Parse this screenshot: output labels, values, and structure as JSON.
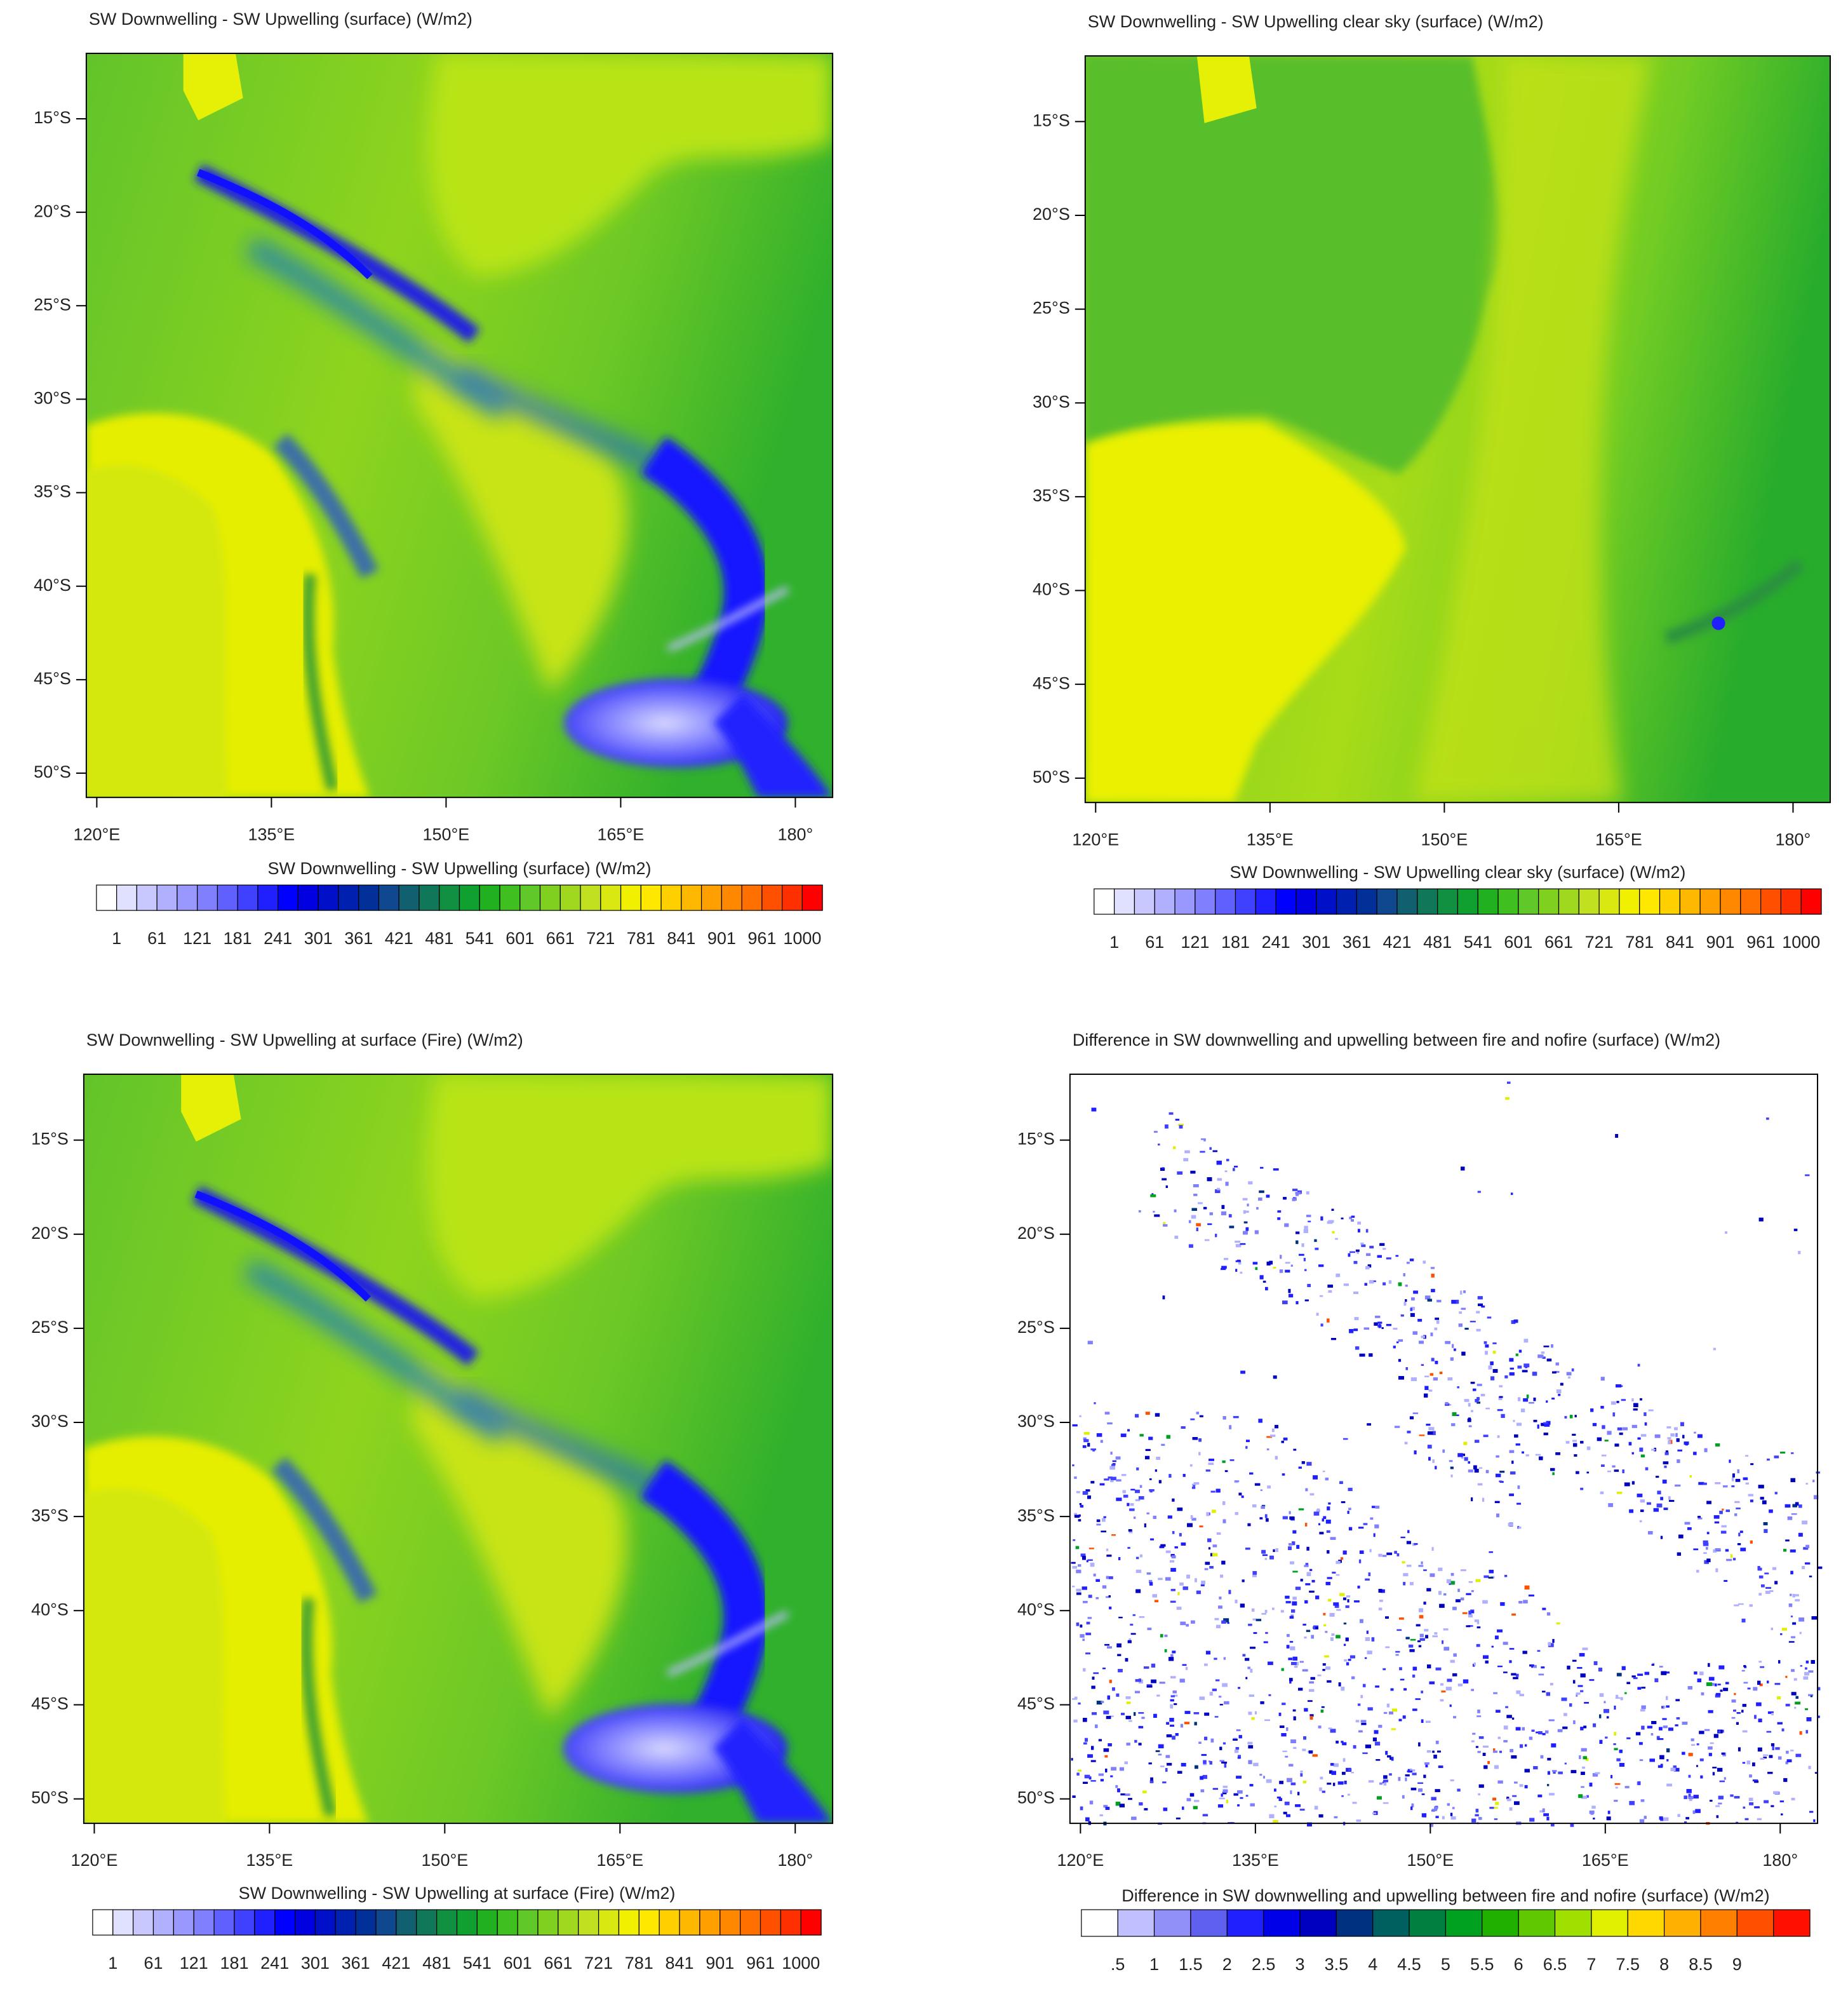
{
  "chart_data": [
    {
      "type": "map",
      "title": "SW Downwelling - SW Upwelling (surface)   (W/m2)",
      "xlim": [
        119.1,
        183.2
      ],
      "ylim": [
        -51.3,
        -11.5
      ],
      "xticks": [
        {
          "value": 120,
          "label": "120°E"
        },
        {
          "value": 135,
          "label": "135°E"
        },
        {
          "value": 150,
          "label": "150°E"
        },
        {
          "value": 165,
          "label": "165°E"
        },
        {
          "value": 180,
          "label": "180°"
        }
      ],
      "yticks": [
        {
          "value": -15,
          "label": "15°S"
        },
        {
          "value": -20,
          "label": "20°S"
        },
        {
          "value": -25,
          "label": "25°S"
        },
        {
          "value": -30,
          "label": "30°S"
        },
        {
          "value": -35,
          "label": "35°S"
        },
        {
          "value": -40,
          "label": "40°S"
        },
        {
          "value": -45,
          "label": "45°S"
        },
        {
          "value": -50,
          "label": "50°S"
        }
      ],
      "colorbar": {
        "title": "SW Downwelling - SW Upwelling (surface)  (W/m2)",
        "labels": [
          1,
          61,
          121,
          181,
          241,
          301,
          361,
          421,
          481,
          541,
          601,
          661,
          721,
          781,
          841,
          901,
          961,
          1000
        ],
        "colors": [
          "#ffffff",
          "#e0e0ff",
          "#c8c8ff",
          "#b0b0ff",
          "#9898ff",
          "#8080ff",
          "#6060ff",
          "#4040ff",
          "#2020ff",
          "#0000ff",
          "#0000e0",
          "#0010c8",
          "#0020b0",
          "#003098",
          "#104890",
          "#106070",
          "#107858",
          "#109040",
          "#10a030",
          "#20b020",
          "#40c020",
          "#60c828",
          "#80d020",
          "#a0d820",
          "#c0e020",
          "#d8e810",
          "#f0f000",
          "#ffe800",
          "#ffd000",
          "#ffb800",
          "#ffa000",
          "#ff8800",
          "#ff7000",
          "#ff5000",
          "#ff3000",
          "#ff0000"
        ]
      }
    },
    {
      "type": "map",
      "title": "SW Downwelling - SW Upwelling clear sky (surface)   (W/m2)",
      "xlim": [
        119.1,
        183.2
      ],
      "ylim": [
        -51.3,
        -11.5
      ],
      "xticks": [
        {
          "value": 120,
          "label": "120°E"
        },
        {
          "value": 135,
          "label": "135°E"
        },
        {
          "value": 150,
          "label": "150°E"
        },
        {
          "value": 165,
          "label": "165°E"
        },
        {
          "value": 180,
          "label": "180°"
        }
      ],
      "yticks": [
        {
          "value": -15,
          "label": "15°S"
        },
        {
          "value": -20,
          "label": "20°S"
        },
        {
          "value": -25,
          "label": "25°S"
        },
        {
          "value": -30,
          "label": "30°S"
        },
        {
          "value": -35,
          "label": "35°S"
        },
        {
          "value": -40,
          "label": "40°S"
        },
        {
          "value": -45,
          "label": "45°S"
        },
        {
          "value": -50,
          "label": "50°S"
        }
      ],
      "colorbar": {
        "title": "SW Downwelling - SW Upwelling clear sky (surface)  (W/m2)",
        "labels": [
          1,
          61,
          121,
          181,
          241,
          301,
          361,
          421,
          481,
          541,
          601,
          661,
          721,
          781,
          841,
          901,
          961,
          1000
        ],
        "colors": [
          "#ffffff",
          "#e0e0ff",
          "#c8c8ff",
          "#b0b0ff",
          "#9898ff",
          "#8080ff",
          "#6060ff",
          "#4040ff",
          "#2020ff",
          "#0000ff",
          "#0000e0",
          "#0010c8",
          "#0020b0",
          "#003098",
          "#104890",
          "#106070",
          "#107858",
          "#109040",
          "#10a030",
          "#20b020",
          "#40c020",
          "#60c828",
          "#80d020",
          "#a0d820",
          "#c0e020",
          "#d8e810",
          "#f0f000",
          "#ffe800",
          "#ffd000",
          "#ffb800",
          "#ffa000",
          "#ff8800",
          "#ff7000",
          "#ff5000",
          "#ff3000",
          "#ff0000"
        ]
      }
    },
    {
      "type": "map",
      "title": "SW Downwelling - SW Upwelling at surface (Fire)   (W/m2)",
      "xlim": [
        119.1,
        183.2
      ],
      "ylim": [
        -51.3,
        -11.5
      ],
      "xticks": [
        {
          "value": 120,
          "label": "120°E"
        },
        {
          "value": 135,
          "label": "135°E"
        },
        {
          "value": 150,
          "label": "150°E"
        },
        {
          "value": 165,
          "label": "165°E"
        },
        {
          "value": 180,
          "label": "180°"
        }
      ],
      "yticks": [
        {
          "value": -15,
          "label": "15°S"
        },
        {
          "value": -20,
          "label": "20°S"
        },
        {
          "value": -25,
          "label": "25°S"
        },
        {
          "value": -30,
          "label": "30°S"
        },
        {
          "value": -35,
          "label": "35°S"
        },
        {
          "value": -40,
          "label": "40°S"
        },
        {
          "value": -45,
          "label": "45°S"
        },
        {
          "value": -50,
          "label": "50°S"
        }
      ],
      "colorbar": {
        "title": "SW Downwelling - SW Upwelling at surface (Fire)  (W/m2)",
        "labels": [
          1,
          61,
          121,
          181,
          241,
          301,
          361,
          421,
          481,
          541,
          601,
          661,
          721,
          781,
          841,
          901,
          961,
          1000
        ],
        "colors": [
          "#ffffff",
          "#e0e0ff",
          "#c8c8ff",
          "#b0b0ff",
          "#9898ff",
          "#8080ff",
          "#6060ff",
          "#4040ff",
          "#2020ff",
          "#0000ff",
          "#0000e0",
          "#0010c8",
          "#0020b0",
          "#003098",
          "#104890",
          "#106070",
          "#107858",
          "#109040",
          "#10a030",
          "#20b020",
          "#40c020",
          "#60c828",
          "#80d020",
          "#a0d820",
          "#c0e020",
          "#d8e810",
          "#f0f000",
          "#ffe800",
          "#ffd000",
          "#ffb800",
          "#ffa000",
          "#ff8800",
          "#ff7000",
          "#ff5000",
          "#ff3000",
          "#ff0000"
        ]
      }
    },
    {
      "type": "map",
      "title": "Difference in SW downwelling and upwelling between fire and nofire (surface)   (W/m2)",
      "xlim": [
        119.1,
        183.2
      ],
      "ylim": [
        -51.3,
        -11.5
      ],
      "xticks": [
        {
          "value": 120,
          "label": "120°E"
        },
        {
          "value": 135,
          "label": "135°E"
        },
        {
          "value": 150,
          "label": "150°E"
        },
        {
          "value": 165,
          "label": "165°E"
        },
        {
          "value": 180,
          "label": "180°"
        }
      ],
      "yticks": [
        {
          "value": -15,
          "label": "15°S"
        },
        {
          "value": -20,
          "label": "20°S"
        },
        {
          "value": -25,
          "label": "25°S"
        },
        {
          "value": -30,
          "label": "30°S"
        },
        {
          "value": -35,
          "label": "35°S"
        },
        {
          "value": -40,
          "label": "40°S"
        },
        {
          "value": -45,
          "label": "45°S"
        },
        {
          "value": -50,
          "label": "50°S"
        }
      ],
      "colorbar": {
        "title": "Difference in SW downwelling and upwelling between fire and nofire (surface)  (W/m2)",
        "labels": [
          {
            "value": 0.5,
            "label": ".5"
          },
          1,
          1.5,
          2,
          2.5,
          3,
          3.5,
          4,
          4.5,
          5,
          5.5,
          6,
          6.5,
          7,
          7.5,
          8,
          8.5,
          9
        ],
        "colors": [
          "#ffffff",
          "#c0c0ff",
          "#9090f8",
          "#6060f0",
          "#2020ff",
          "#0000e8",
          "#0000c0",
          "#003080",
          "#006060",
          "#008040",
          "#00a020",
          "#20b000",
          "#60c800",
          "#a0e000",
          "#e0f000",
          "#ffd800",
          "#ffb000",
          "#ff8000",
          "#ff5000",
          "#ff1000"
        ]
      }
    }
  ]
}
